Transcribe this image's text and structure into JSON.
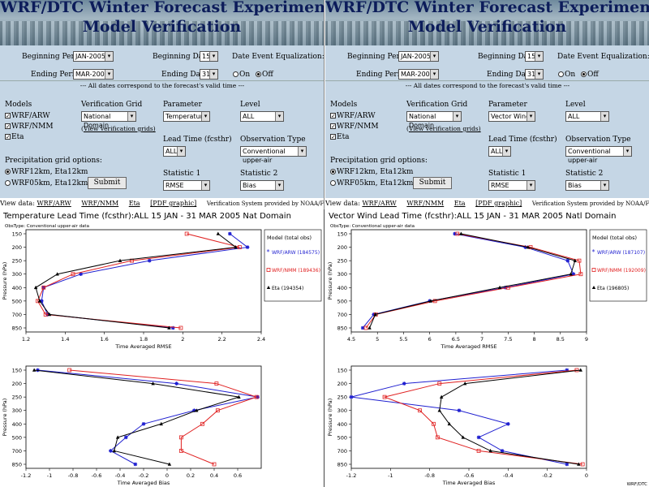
{
  "banner": {
    "title1": "WRF/DTC Winter Forecast Experiment (DWFE)",
    "title2": "Model Verification"
  },
  "form": {
    "beginning_period_label": "Beginning Period:",
    "beginning_period_value": "JAN-2005",
    "beginning_day_label": "Beginning Day:",
    "beginning_day_value": "15",
    "ending_period_label": "Ending Period:",
    "ending_period_value": "MAR-2005",
    "ending_day_label": "Ending Day:",
    "ending_day_value": "31",
    "date_eq_label": "Date Event Equalization:",
    "on_label": "On",
    "off_label": "Off",
    "note": "---  All dates correspond to the forecast's valid time  ---",
    "models_label": "Models",
    "models": [
      "WRF/ARW",
      "WRF/NMM",
      "Eta"
    ],
    "verif_grid_label": "Verification Grid",
    "verif_grid_value": "National Domain",
    "view_grids": "View verification grids)",
    "parameter_label": "Parameter",
    "level_label": "Level",
    "level_value": "ALL",
    "lead_time_label": "Lead Time (fcsthr)",
    "lead_time_value": "ALL",
    "obs_type_label": "Observation Type",
    "obs_type_value": "Conventional upper-air",
    "precip_label": "Precipitation grid options:",
    "precip_opt1": "WRF12km, Eta12km",
    "precip_opt2": "WRF05km, Eta12km",
    "submit": "Submit",
    "stat1_label": "Statistic 1",
    "stat1_value": "RMSE",
    "stat2_label": "Statistic 2",
    "stat2_value": "Bias"
  },
  "left_form": {
    "parameter_value": "Temperature"
  },
  "right_form": {
    "parameter_value": "Vector Wind"
  },
  "viewbar": {
    "label": "View data:",
    "links": [
      "WRF/ARW",
      "WRF/NMM",
      "Eta",
      "[PDF graphic]"
    ],
    "credit": "Verification System provided by NOAA/FSL and NCEP/EMC"
  },
  "chart_data": [
    {
      "type": "line",
      "title": "Temperature   Lead Time (fcsthr):ALL    15 JAN - 31 MAR 2005    Nat Domain",
      "subtitle": "ObsType: Conventional upper-air data",
      "xlabel": "Time Averaged RMSE",
      "ylabel": "Pressure (hPa)",
      "xlim": [
        1.2,
        2.4
      ],
      "xticks": [
        1.2,
        1.4,
        1.6,
        1.8,
        2,
        2.2,
        2.4
      ],
      "y": [
        150,
        200,
        250,
        300,
        400,
        500,
        700,
        850
      ],
      "legend_title": "Model   (total obs)",
      "series": [
        {
          "name": "WRF/ARW  (184575)",
          "color": "#1f1fd0",
          "marker": "*",
          "values": [
            2.24,
            2.33,
            1.83,
            1.48,
            1.29,
            1.28,
            1.31,
            1.95
          ]
        },
        {
          "name": "WRF/NMM  (189436)",
          "color": "#e02020",
          "marker": "o",
          "values": [
            2.02,
            2.29,
            1.74,
            1.44,
            1.29,
            1.26,
            1.3,
            1.99
          ]
        },
        {
          "name": "Eta  (194354)",
          "color": "#000000",
          "marker": "^",
          "values": [
            2.18,
            2.27,
            1.68,
            1.36,
            1.25,
            1.27,
            1.32,
            1.93
          ]
        }
      ]
    },
    {
      "type": "line",
      "title": "Vector Wind   Lead Time (fcsthr):ALL    15 JAN - 31 MAR 2005    Natl Domain",
      "subtitle": "ObsType: Conventional upper-air data",
      "xlabel": "Time Averaged RMSE",
      "ylabel": "Pressure (hPa)",
      "xlim": [
        4.5,
        9
      ],
      "xticks": [
        4.5,
        5,
        5.5,
        6,
        6.5,
        7,
        7.5,
        8,
        8.5,
        9
      ],
      "y": [
        150,
        200,
        250,
        300,
        400,
        500,
        700,
        850
      ],
      "legend_title": "Model   (total obs)",
      "series": [
        {
          "name": "WRF/ARW  (187107)",
          "color": "#1f1fd0",
          "marker": "*",
          "values": [
            6.48,
            7.83,
            8.64,
            8.75,
            7.45,
            6.0,
            4.93,
            4.72
          ]
        },
        {
          "name": "WRF/NMM  (192009)",
          "color": "#e02020",
          "marker": "o",
          "values": [
            6.53,
            7.93,
            8.86,
            8.89,
            7.5,
            6.1,
            4.97,
            4.78
          ]
        },
        {
          "name": "Eta  (196805)",
          "color": "#000000",
          "marker": "^",
          "values": [
            6.6,
            7.88,
            8.78,
            8.7,
            7.34,
            6.02,
            4.96,
            4.85
          ]
        }
      ]
    },
    {
      "type": "line",
      "title": "",
      "xlabel": "Time Averaged Bias",
      "ylabel": "Pressure (hPa)",
      "xlim": [
        -1.2,
        0.8
      ],
      "xticks": [
        -1.2,
        -1,
        -0.8,
        -0.6,
        -0.4,
        -0.2,
        0,
        0.2,
        0.4,
        0.6
      ],
      "y": [
        150,
        200,
        250,
        300,
        400,
        500,
        700,
        850
      ],
      "series": [
        {
          "name": "WRF/ARW",
          "color": "#1f1fd0",
          "values": [
            -1.1,
            0.08,
            0.77,
            0.23,
            -0.2,
            -0.35,
            -0.48,
            -0.27
          ]
        },
        {
          "name": "WRF/NMM",
          "color": "#e02020",
          "values": [
            -0.83,
            0.42,
            0.76,
            0.43,
            0.3,
            0.12,
            0.12,
            0.4
          ]
        },
        {
          "name": "Eta",
          "color": "#000000",
          "values": [
            -1.13,
            -0.12,
            0.61,
            0.25,
            -0.05,
            -0.42,
            -0.45,
            0.02
          ]
        }
      ]
    },
    {
      "type": "line",
      "title": "",
      "xlabel": "Time Averaged Bias",
      "ylabel": "Pressure (hPa)",
      "xlim": [
        -1.2,
        0
      ],
      "xticks": [
        -1.2,
        -1,
        -0.8,
        -0.6,
        -0.4,
        -0.2,
        0
      ],
      "y": [
        150,
        200,
        250,
        300,
        400,
        500,
        700,
        850
      ],
      "series": [
        {
          "name": "WRF/ARW",
          "color": "#1f1fd0",
          "values": [
            -0.1,
            -0.93,
            -1.2,
            -0.65,
            -0.4,
            -0.55,
            -0.43,
            -0.1
          ]
        },
        {
          "name": "WRF/NMM",
          "color": "#e02020",
          "values": [
            -0.05,
            -0.75,
            -1.03,
            -0.85,
            -0.78,
            -0.76,
            -0.55,
            -0.02
          ]
        },
        {
          "name": "Eta",
          "color": "#000000",
          "values": [
            -0.03,
            -0.62,
            -0.74,
            -0.75,
            -0.7,
            -0.63,
            -0.49,
            -0.04
          ]
        }
      ]
    }
  ],
  "footer_mark": "WRF/DTC"
}
